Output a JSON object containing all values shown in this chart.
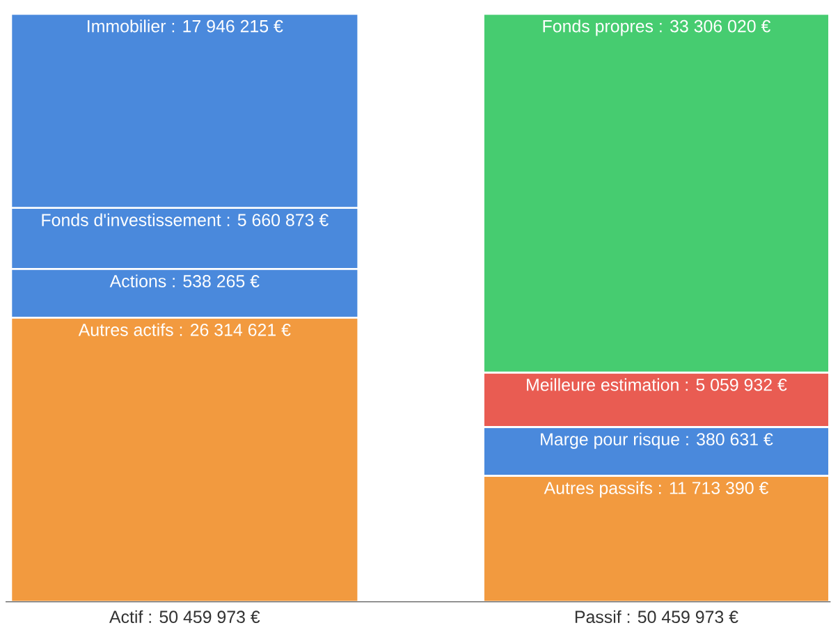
{
  "chart_data": {
    "type": "other",
    "categories": [
      "Actif : 50 459 973 €",
      "Passif : 50 459 973 €"
    ],
    "series": [
      {
        "color": "#f29a3f",
        "values": [
          26314621,
          null
        ],
        "value_labels": [
          "Autres actifs : 26 314 621 €",
          null
        ]
      },
      {
        "color": "#4a89dc",
        "values": [
          538265,
          null
        ],
        "value_labels": [
          "Actions : 538 265 €",
          null
        ]
      },
      {
        "color": "#4a89dc",
        "values": [
          5660873,
          null
        ],
        "value_labels": [
          "Fonds d'investissement : 5 660 873 €",
          null
        ]
      },
      {
        "color": "#4a89dc",
        "values": [
          17946215,
          null
        ],
        "value_labels": [
          "Immobilier : 17 946 215 €",
          null
        ]
      },
      {
        "color": "#f29a3f",
        "values": [
          null,
          11713390
        ],
        "value_labels": [
          null,
          "Autres passifs : 11 713 390 €"
        ]
      },
      {
        "color": "#4a89dc",
        "values": [
          null,
          380631
        ],
        "value_labels": [
          null,
          "Marge pour risque : 380 631 €"
        ]
      },
      {
        "color": "#e95c52",
        "values": [
          null,
          5059932
        ],
        "value_labels": [
          null,
          "Meilleure estimation : 5 059 932 €"
        ]
      },
      {
        "color": "#46cc70",
        "values": [
          null,
          33306020
        ],
        "value_labels": [
          null,
          "Fonds propres : 33 306 020 €"
        ]
      }
    ]
  }
}
